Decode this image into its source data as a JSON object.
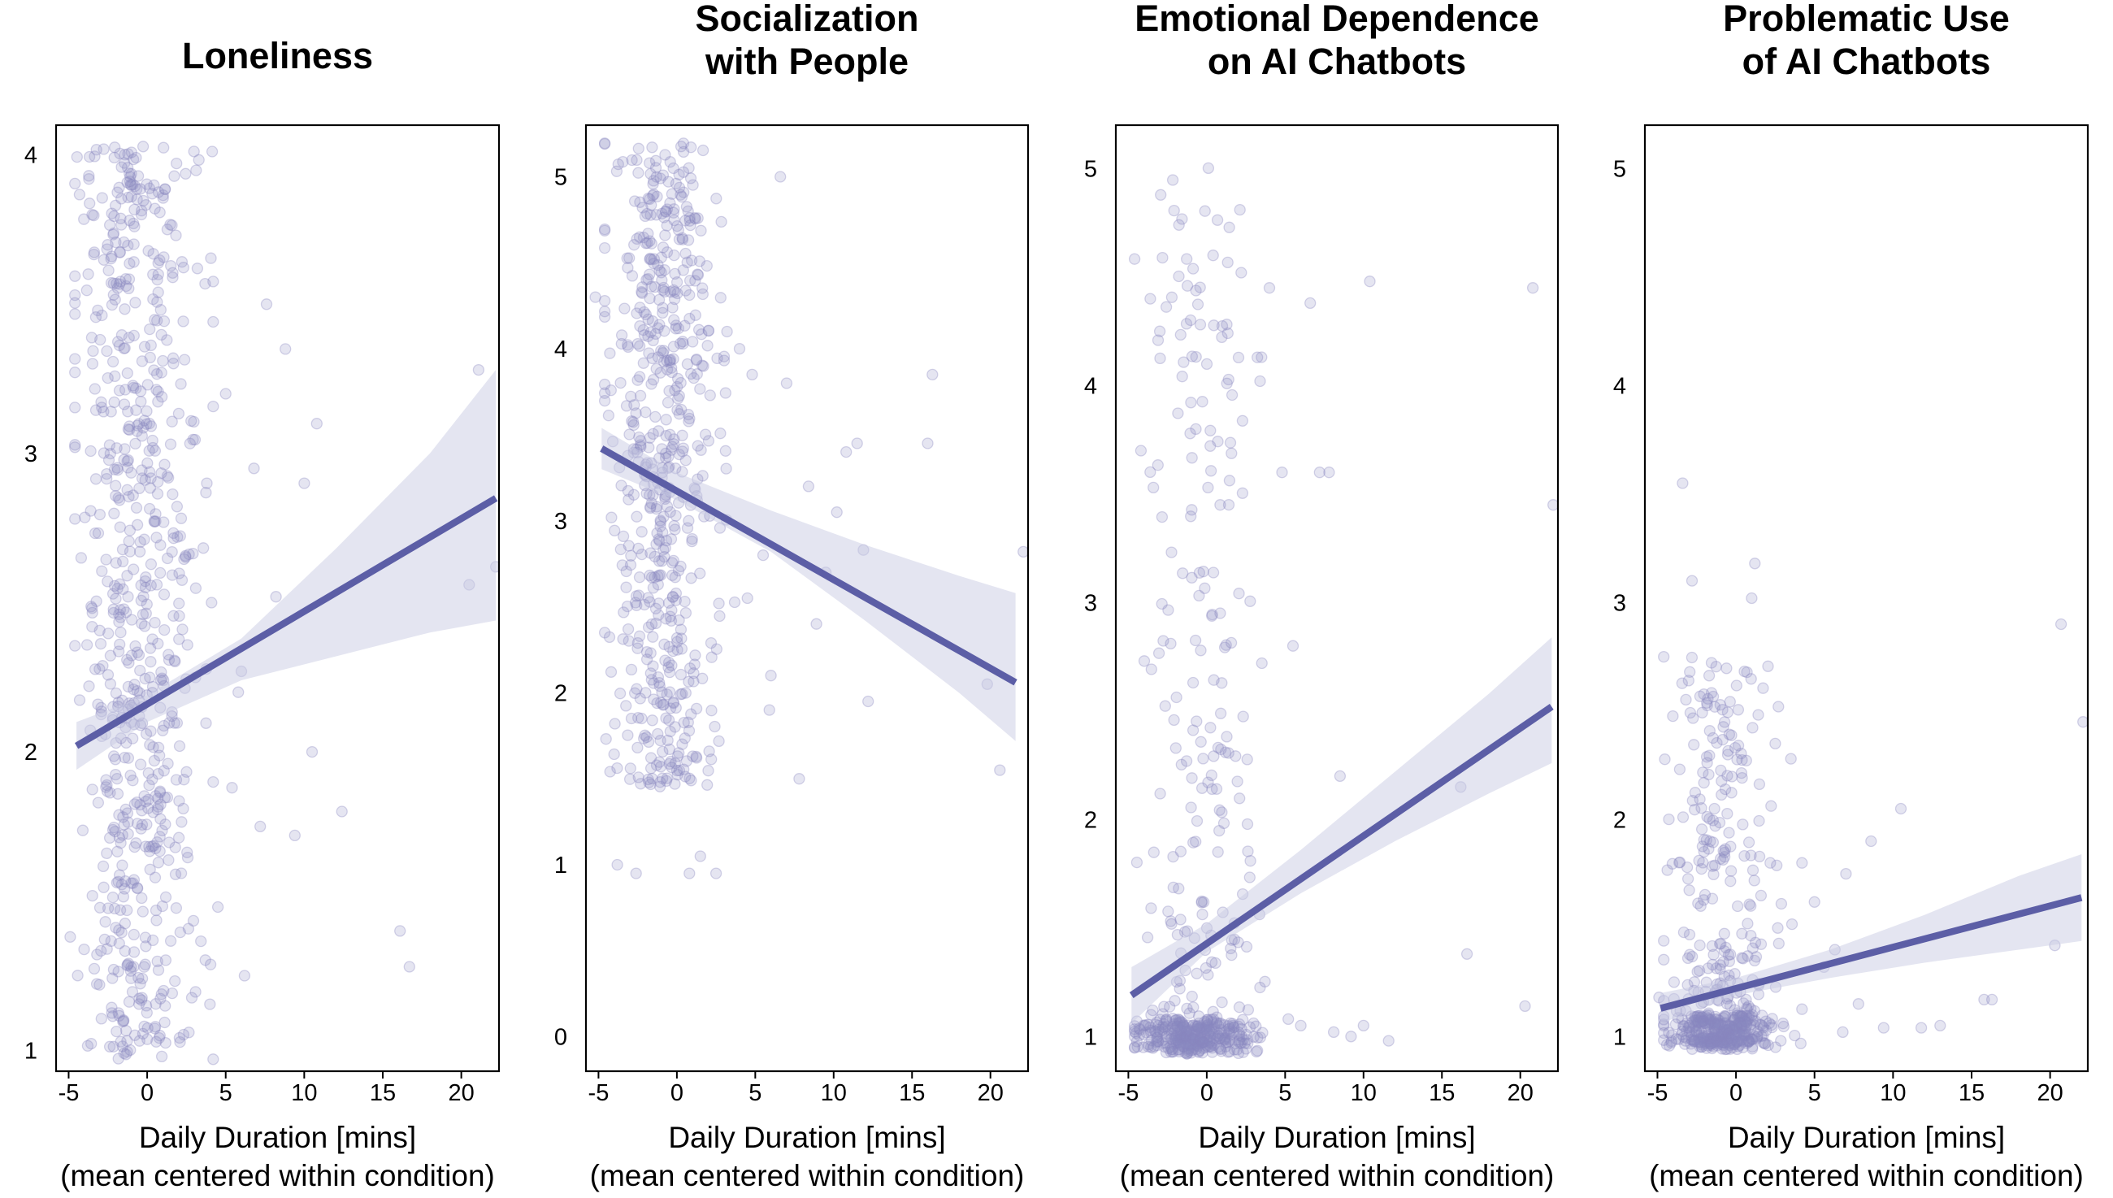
{
  "colors": {
    "point": "#8a88c0",
    "line": "#5c5ea6",
    "band": "#c9cbe3"
  },
  "x_axis": {
    "label_line1": "Daily Duration [mins]",
    "label_line2": "(mean centered within condition)"
  },
  "chart_data": [
    {
      "type": "scatter",
      "title_lines": [
        "Loneliness"
      ],
      "xlabel": "Daily Duration [mins] (mean centered within condition)",
      "ylabel": "",
      "xlim": [
        -5.8,
        22.4
      ],
      "ylim": [
        0.93,
        4.1
      ],
      "xticks": [
        -5,
        0,
        5,
        10,
        15,
        20
      ],
      "xtick_labels": [
        "-5",
        "0",
        "5",
        "10",
        "15",
        "20"
      ],
      "yticks": [
        1,
        2,
        3,
        4
      ],
      "ytick_labels": [
        "1",
        "2",
        "3",
        "4"
      ],
      "regression": {
        "x": [
          -4.5,
          22.2
        ],
        "y": [
          2.02,
          2.85
        ]
      },
      "ci_band": {
        "x": [
          -4.5,
          0,
          6,
          12,
          18,
          22.2
        ],
        "lower": [
          1.94,
          2.1,
          2.24,
          2.32,
          2.4,
          2.44
        ],
        "upper": [
          2.1,
          2.19,
          2.38,
          2.68,
          3.0,
          3.28
        ]
      },
      "cloud": {
        "x_center": -0.4,
        "x_spread": 1.9,
        "y_min": 0.97,
        "y_max": 4.03,
        "count": 700,
        "seed": 11
      },
      "points": [
        {
          "x": -4.9,
          "y": 1.38
        },
        {
          "x": -4.2,
          "y": 2.65
        },
        {
          "x": -3.5,
          "y": 3.8
        },
        {
          "x": 3.2,
          "y": 3.62
        },
        {
          "x": 3.8,
          "y": 2.9
        },
        {
          "x": 4.5,
          "y": 1.48
        },
        {
          "x": 5.0,
          "y": 3.2
        },
        {
          "x": 5.4,
          "y": 1.88
        },
        {
          "x": 5.8,
          "y": 2.2
        },
        {
          "x": 6.2,
          "y": 1.25
        },
        {
          "x": 6.8,
          "y": 2.95
        },
        {
          "x": 7.2,
          "y": 1.75
        },
        {
          "x": 7.6,
          "y": 3.5
        },
        {
          "x": 8.2,
          "y": 2.52
        },
        {
          "x": 8.8,
          "y": 3.35
        },
        {
          "x": 9.4,
          "y": 1.72
        },
        {
          "x": 10.0,
          "y": 2.9
        },
        {
          "x": 10.5,
          "y": 2.0
        },
        {
          "x": 10.8,
          "y": 3.1
        },
        {
          "x": 12.4,
          "y": 1.8
        },
        {
          "x": 16.1,
          "y": 1.4
        },
        {
          "x": 16.7,
          "y": 1.28
        },
        {
          "x": 20.5,
          "y": 2.56
        },
        {
          "x": 21.1,
          "y": 3.28
        },
        {
          "x": 22.2,
          "y": 2.62
        },
        {
          "x": 6.0,
          "y": 2.27
        },
        {
          "x": 4.1,
          "y": 2.5
        }
      ]
    },
    {
      "type": "scatter",
      "title_lines": [
        "Socialization",
        "with People"
      ],
      "xlabel": "Daily Duration [mins] (mean centered within condition)",
      "ylabel": "",
      "xlim": [
        -5.8,
        22.4
      ],
      "ylim": [
        -0.2,
        5.3
      ],
      "xticks": [
        -5,
        0,
        5,
        10,
        15,
        20
      ],
      "xtick_labels": [
        "-5",
        "0",
        "5",
        "10",
        "15",
        "20"
      ],
      "yticks": [
        0,
        1,
        2,
        3,
        4,
        5
      ],
      "ytick_labels": [
        "0",
        "1",
        "2",
        "3",
        "4",
        "5"
      ],
      "regression": {
        "x": [
          -4.8,
          21.6
        ],
        "y": [
          3.42,
          2.06
        ]
      },
      "ci_band": {
        "x": [
          -4.8,
          0,
          6,
          12,
          18,
          21.6
        ],
        "lower": [
          3.3,
          3.12,
          2.82,
          2.42,
          2.0,
          1.72
        ],
        "upper": [
          3.54,
          3.28,
          3.06,
          2.86,
          2.68,
          2.58
        ]
      },
      "cloud": {
        "x_center": -1.0,
        "x_spread": 1.7,
        "y_min": 1.45,
        "y_max": 5.2,
        "count": 580,
        "seed": 23
      },
      "points": [
        {
          "x": -5.2,
          "y": 4.3
        },
        {
          "x": -3.8,
          "y": 1.0
        },
        {
          "x": -2.6,
          "y": 0.95
        },
        {
          "x": 0.8,
          "y": 0.95
        },
        {
          "x": 1.5,
          "y": 1.05
        },
        {
          "x": 2.5,
          "y": 0.95
        },
        {
          "x": 3.2,
          "y": 4.1
        },
        {
          "x": 4.0,
          "y": 4.0
        },
        {
          "x": 4.8,
          "y": 3.85
        },
        {
          "x": 5.5,
          "y": 2.8
        },
        {
          "x": 6.0,
          "y": 2.1
        },
        {
          "x": 6.6,
          "y": 5.0
        },
        {
          "x": 7.0,
          "y": 3.8
        },
        {
          "x": 7.8,
          "y": 1.5
        },
        {
          "x": 8.4,
          "y": 3.2
        },
        {
          "x": 8.9,
          "y": 2.4
        },
        {
          "x": 9.5,
          "y": 2.7
        },
        {
          "x": 10.2,
          "y": 3.05
        },
        {
          "x": 10.8,
          "y": 3.4
        },
        {
          "x": 11.5,
          "y": 3.45
        },
        {
          "x": 12.2,
          "y": 1.95
        },
        {
          "x": 11.9,
          "y": 2.83
        },
        {
          "x": 16.0,
          "y": 3.45
        },
        {
          "x": 16.3,
          "y": 3.85
        },
        {
          "x": 19.8,
          "y": 2.05
        },
        {
          "x": 20.6,
          "y": 1.55
        },
        {
          "x": 22.1,
          "y": 2.82
        },
        {
          "x": 5.9,
          "y": 1.9
        },
        {
          "x": 4.5,
          "y": 2.55
        }
      ]
    },
    {
      "type": "scatter",
      "title_lines": [
        "Emotional Dependence",
        "on AI Chatbots"
      ],
      "xlabel": "Daily Duration [mins] (mean centered within condition)",
      "ylabel": "",
      "xlim": [
        -5.8,
        22.4
      ],
      "ylim": [
        0.84,
        5.2
      ],
      "xticks": [
        -5,
        0,
        5,
        10,
        15,
        20
      ],
      "xtick_labels": [
        "-5",
        "0",
        "5",
        "10",
        "15",
        "20"
      ],
      "yticks": [
        1,
        2,
        3,
        4,
        5
      ],
      "ytick_labels": [
        "1",
        "2",
        "3",
        "4",
        "5"
      ],
      "regression": {
        "x": [
          -4.8,
          22.0
        ],
        "y": [
          1.19,
          2.52
        ]
      },
      "ci_band": {
        "x": [
          -4.8,
          0,
          6,
          12,
          18,
          22.0
        ],
        "lower": [
          1.06,
          1.39,
          1.66,
          1.9,
          2.12,
          2.26
        ],
        "upper": [
          1.32,
          1.52,
          1.86,
          2.22,
          2.58,
          2.84
        ]
      },
      "cloud": {
        "x_center": -0.6,
        "x_spread": 1.8,
        "y_min": 0.95,
        "y_max": 5.05,
        "count": 520,
        "seed": 37,
        "floor_y": 1.0,
        "floor_fraction": 0.55
      },
      "points": [
        {
          "x": -4.6,
          "y": 1.0
        },
        {
          "x": -4.2,
          "y": 3.7
        },
        {
          "x": -3.6,
          "y": 4.4
        },
        {
          "x": 2.2,
          "y": 4.52
        },
        {
          "x": 3.4,
          "y": 4.02
        },
        {
          "x": 4.0,
          "y": 4.45
        },
        {
          "x": 4.8,
          "y": 3.6
        },
        {
          "x": 5.5,
          "y": 2.8
        },
        {
          "x": 6.0,
          "y": 1.05
        },
        {
          "x": 6.6,
          "y": 4.38
        },
        {
          "x": 7.2,
          "y": 3.6
        },
        {
          "x": 7.8,
          "y": 3.6
        },
        {
          "x": 8.5,
          "y": 2.2
        },
        {
          "x": 9.2,
          "y": 1.0
        },
        {
          "x": 10.4,
          "y": 4.48
        },
        {
          "x": 10.0,
          "y": 1.05
        },
        {
          "x": 11.6,
          "y": 0.98
        },
        {
          "x": 16.6,
          "y": 1.38
        },
        {
          "x": 16.2,
          "y": 2.15
        },
        {
          "x": 20.3,
          "y": 1.14
        },
        {
          "x": 20.8,
          "y": 4.45
        },
        {
          "x": 22.1,
          "y": 3.45
        },
        {
          "x": 8.1,
          "y": 1.02
        },
        {
          "x": 5.2,
          "y": 1.08
        }
      ]
    },
    {
      "type": "scatter",
      "title_lines": [
        "Problematic Use",
        "of AI Chatbots"
      ],
      "xlabel": "Daily Duration [mins] (mean centered within condition)",
      "ylabel": "",
      "xlim": [
        -5.8,
        22.4
      ],
      "ylim": [
        0.84,
        5.2
      ],
      "xticks": [
        -5,
        0,
        5,
        10,
        15,
        20
      ],
      "xtick_labels": [
        "-5",
        "0",
        "5",
        "10",
        "15",
        "20"
      ],
      "yticks": [
        1,
        2,
        3,
        4,
        5
      ],
      "ytick_labels": [
        "1",
        "2",
        "3",
        "4",
        "5"
      ],
      "regression": {
        "x": [
          -4.8,
          22.0
        ],
        "y": [
          1.13,
          1.64
        ]
      },
      "ci_band": {
        "x": [
          -4.8,
          0,
          6,
          12,
          18,
          22.0
        ],
        "lower": [
          1.06,
          1.19,
          1.27,
          1.34,
          1.4,
          1.44
        ],
        "upper": [
          1.2,
          1.27,
          1.4,
          1.56,
          1.74,
          1.84
        ]
      },
      "cloud": {
        "x_center": -0.8,
        "x_spread": 1.8,
        "y_min": 0.97,
        "y_max": 2.75,
        "count": 560,
        "seed": 53,
        "floor_y": 1.02,
        "floor_fraction": 0.45
      },
      "points": [
        {
          "x": -4.9,
          "y": 1.18
        },
        {
          "x": -3.4,
          "y": 3.55
        },
        {
          "x": -2.8,
          "y": 3.1
        },
        {
          "x": 1.2,
          "y": 3.18
        },
        {
          "x": 1.0,
          "y": 3.02
        },
        {
          "x": 2.5,
          "y": 2.35
        },
        {
          "x": 3.5,
          "y": 2.28
        },
        {
          "x": 4.2,
          "y": 1.8
        },
        {
          "x": 5.0,
          "y": 1.62
        },
        {
          "x": 5.6,
          "y": 1.32
        },
        {
          "x": 6.3,
          "y": 1.4
        },
        {
          "x": 7.0,
          "y": 1.75
        },
        {
          "x": 7.8,
          "y": 1.15
        },
        {
          "x": 8.6,
          "y": 1.9
        },
        {
          "x": 9.4,
          "y": 1.04
        },
        {
          "x": 10.5,
          "y": 2.05
        },
        {
          "x": 11.8,
          "y": 1.04
        },
        {
          "x": 13.0,
          "y": 1.05
        },
        {
          "x": 15.8,
          "y": 1.17
        },
        {
          "x": 16.3,
          "y": 1.17
        },
        {
          "x": 20.3,
          "y": 1.42
        },
        {
          "x": 20.7,
          "y": 2.9
        },
        {
          "x": 22.1,
          "y": 2.45
        },
        {
          "x": 6.8,
          "y": 1.02
        }
      ]
    }
  ]
}
